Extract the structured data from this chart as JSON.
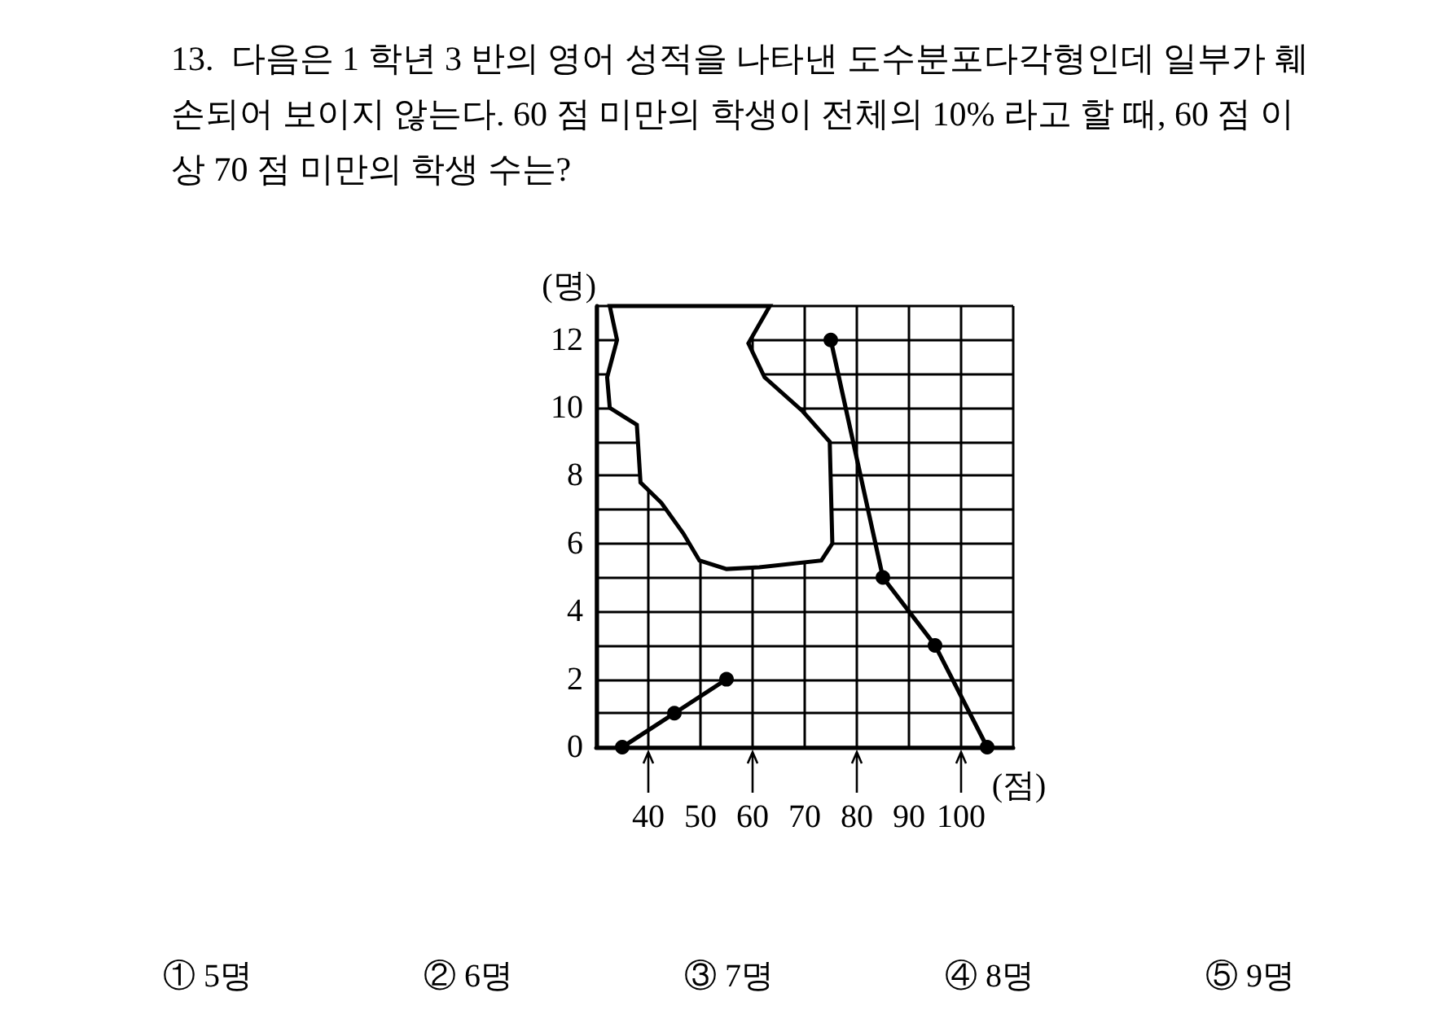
{
  "chart_data": {
    "type": "line",
    "title": "13.  다음은 1 학년 3 반의 영어 성적을 나타낸 도수분포다각형인데 일부가 훼손되어 보이지 않는다. 60 점 미만의 학생이 전체의 10% 라고 할 때, 60 점 이상 70 점 미만의 학생 수는?",
    "xlabel": "(점)",
    "ylabel": "(명)",
    "x": [
      35,
      45,
      55,
      65,
      75,
      85,
      95,
      105
    ],
    "series": [
      {
        "color": "#000000",
        "values": [
          0,
          1,
          2,
          null,
          12,
          5,
          3,
          0
        ]
      }
    ],
    "xlim": [
      30,
      110
    ],
    "xticks": [
      {
        "value": 30,
        "label": null
      },
      40,
      50,
      60,
      70,
      80,
      90,
      100,
      {
        "value": 110,
        "label": null
      }
    ],
    "ylim": [
      0,
      13
    ],
    "yticks": [
      0,
      {
        "value": 1,
        "label": null
      },
      2,
      {
        "value": 3,
        "label": null
      },
      4,
      {
        "value": 5,
        "label": null
      },
      6,
      {
        "value": 7,
        "label": null
      },
      8,
      {
        "value": 9,
        "label": null
      },
      10,
      {
        "value": 11,
        "label": null
      },
      12,
      {
        "value": 13,
        "label": null
      }
    ],
    "grid": true,
    "marker": "circle",
    "line_style": "solid",
    "annotations": [
      "① 5명",
      "② 6명",
      "③ 7명",
      "④ 8명",
      "⑤ 9명"
    ]
  }
}
